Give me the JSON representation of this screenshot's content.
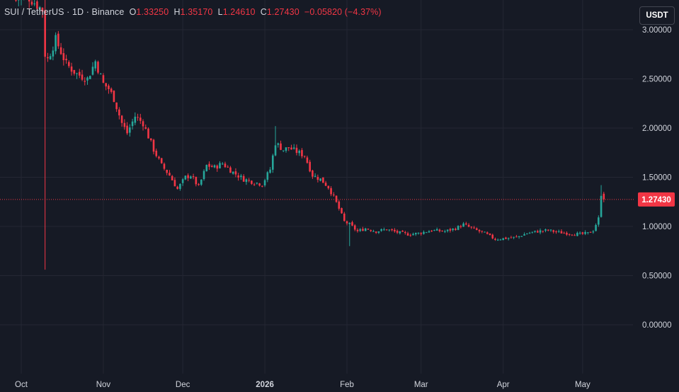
{
  "header": {
    "symbol": "SUI / TetherUS · 1D · Binance",
    "open_label": "O",
    "open": "1.33250",
    "high_label": "H",
    "high": "1.35170",
    "low_label": "L",
    "low": "1.24610",
    "close_label": "C",
    "close": "1.27430",
    "change": "−0.05820 (−4.37%)"
  },
  "currency_button": "USDT",
  "colors": {
    "background": "#161a25",
    "up": "#26a69a",
    "down": "#f23645",
    "grid": "#242733",
    "text": "#d1d4dc"
  },
  "chart_data": {
    "type": "candlestick",
    "symbol": "SUI / TetherUS",
    "interval": "1D",
    "exchange": "Binance",
    "last_price": 1.2743,
    "last_price_label": "1.27430",
    "y_ticks": [
      3.0,
      2.5,
      2.0,
      1.5,
      1.0,
      0.5,
      0.0
    ],
    "y_tick_labels": [
      "3.00000",
      "2.50000",
      "2.00000",
      "1.50000",
      "1.00000",
      "0.50000",
      "0.00000"
    ],
    "x_tick_labels": [
      "Oct",
      "Nov",
      "Dec",
      "2026",
      "Feb",
      "Mar",
      "Apr",
      "May"
    ],
    "x_tick_dates": [
      "2025-10-01",
      "2025-11-01",
      "2025-12-01",
      "2026-01-01",
      "2026-02-01",
      "2026-03-01",
      "2026-04-01",
      "2026-05-01"
    ],
    "grid": true,
    "close_path": [
      [
        "2025-09-29",
        3.3
      ],
      [
        "2025-10-03",
        3.35
      ],
      [
        "2025-10-09",
        3.2
      ],
      [
        "2025-10-10",
        2.75
      ],
      [
        "2025-10-11",
        2.7
      ],
      [
        "2025-10-14",
        2.9
      ],
      [
        "2025-10-18",
        2.65
      ],
      [
        "2025-10-22",
        2.55
      ],
      [
        "2025-10-26",
        2.5
      ],
      [
        "2025-10-29",
        2.68
      ],
      [
        "2025-11-01",
        2.45
      ],
      [
        "2025-11-03",
        2.4
      ],
      [
        "2025-11-05",
        2.3
      ],
      [
        "2025-11-08",
        2.05
      ],
      [
        "2025-11-10",
        1.95
      ],
      [
        "2025-11-13",
        2.12
      ],
      [
        "2025-11-16",
        2.05
      ],
      [
        "2025-11-20",
        1.78
      ],
      [
        "2025-11-23",
        1.62
      ],
      [
        "2025-11-26",
        1.52
      ],
      [
        "2025-11-29",
        1.38
      ],
      [
        "2025-12-02",
        1.5
      ],
      [
        "2025-12-04",
        1.52
      ],
      [
        "2025-12-07",
        1.4
      ],
      [
        "2025-12-10",
        1.62
      ],
      [
        "2025-12-13",
        1.6
      ],
      [
        "2025-12-16",
        1.64
      ],
      [
        "2025-12-20",
        1.55
      ],
      [
        "2025-12-24",
        1.48
      ],
      [
        "2025-12-28",
        1.45
      ],
      [
        "2025-12-31",
        1.43
      ],
      [
        "2026-01-03",
        1.58
      ],
      [
        "2026-01-05",
        1.85
      ],
      [
        "2026-01-08",
        1.78
      ],
      [
        "2026-01-10",
        1.8
      ],
      [
        "2026-01-13",
        1.76
      ],
      [
        "2026-01-16",
        1.72
      ],
      [
        "2026-01-19",
        1.52
      ],
      [
        "2026-01-22",
        1.48
      ],
      [
        "2026-01-25",
        1.4
      ],
      [
        "2026-01-27",
        1.3
      ],
      [
        "2026-01-29",
        1.18
      ],
      [
        "2026-01-31",
        1.05
      ],
      [
        "2026-02-02",
        1.02
      ],
      [
        "2026-02-05",
        0.95
      ],
      [
        "2026-02-08",
        0.98
      ],
      [
        "2026-02-12",
        0.95
      ],
      [
        "2026-02-16",
        0.97
      ],
      [
        "2026-02-20",
        0.94
      ],
      [
        "2026-02-24",
        0.92
      ],
      [
        "2026-02-28",
        0.93
      ],
      [
        "2026-03-05",
        0.96
      ],
      [
        "2026-03-10",
        0.95
      ],
      [
        "2026-03-14",
        0.98
      ],
      [
        "2026-03-17",
        1.02
      ],
      [
        "2026-03-21",
        0.97
      ],
      [
        "2026-03-25",
        0.93
      ],
      [
        "2026-03-29",
        0.87
      ],
      [
        "2026-04-02",
        0.88
      ],
      [
        "2026-04-06",
        0.89
      ],
      [
        "2026-04-10",
        0.93
      ],
      [
        "2026-04-14",
        0.95
      ],
      [
        "2026-04-18",
        0.96
      ],
      [
        "2026-04-22",
        0.94
      ],
      [
        "2026-04-26",
        0.93
      ],
      [
        "2026-04-30",
        0.92
      ],
      [
        "2026-05-03",
        0.93
      ],
      [
        "2026-05-05",
        0.96
      ],
      [
        "2026-05-07",
        1.08
      ],
      [
        "2026-05-08",
        1.33
      ],
      [
        "2026-05-09",
        1.274
      ]
    ]
  }
}
